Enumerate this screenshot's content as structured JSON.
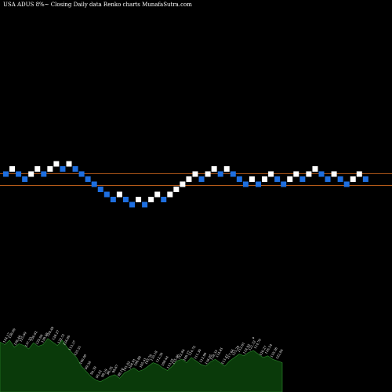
{
  "header": {
    "title": "USA ADUS 8%~  Closing Daily data  Renko  charts MunafaSutra.com"
  },
  "colors": {
    "background": "#000000",
    "up_brick": "#ffffff",
    "down_brick": "#1e6fe0",
    "level_line": "#d2691e",
    "volume_fill": "#0a3a0a",
    "volume_edge": "#2e8b2e",
    "label": "#ffffff"
  },
  "chart_data": {
    "type": "renko",
    "title": "USA ADUS 8%~ Closing Daily data Renko charts MunafaSutra.com",
    "brick_step": 1,
    "levels": [
      0,
      -2.3
    ],
    "bricks": [
      {
        "level": 0,
        "dir": "down"
      },
      {
        "level": 1,
        "dir": "up"
      },
      {
        "level": 0,
        "dir": "down"
      },
      {
        "level": -1,
        "dir": "down"
      },
      {
        "level": 0,
        "dir": "up"
      },
      {
        "level": 1,
        "dir": "up"
      },
      {
        "level": 0,
        "dir": "down"
      },
      {
        "level": 1,
        "dir": "up"
      },
      {
        "level": 2,
        "dir": "up"
      },
      {
        "level": 1,
        "dir": "down"
      },
      {
        "level": 2,
        "dir": "up"
      },
      {
        "level": 1,
        "dir": "down"
      },
      {
        "level": 0,
        "dir": "down"
      },
      {
        "level": -1,
        "dir": "down"
      },
      {
        "level": -2,
        "dir": "down"
      },
      {
        "level": -3,
        "dir": "down"
      },
      {
        "level": -4,
        "dir": "down"
      },
      {
        "level": -5,
        "dir": "down"
      },
      {
        "level": -4,
        "dir": "up"
      },
      {
        "level": -5,
        "dir": "down"
      },
      {
        "level": -6,
        "dir": "down"
      },
      {
        "level": -5,
        "dir": "up"
      },
      {
        "level": -6,
        "dir": "down"
      },
      {
        "level": -5,
        "dir": "up"
      },
      {
        "level": -4,
        "dir": "up"
      },
      {
        "level": -5,
        "dir": "down"
      },
      {
        "level": -4,
        "dir": "up"
      },
      {
        "level": -3,
        "dir": "up"
      },
      {
        "level": -2,
        "dir": "up"
      },
      {
        "level": -1,
        "dir": "up"
      },
      {
        "level": 0,
        "dir": "up"
      },
      {
        "level": -1,
        "dir": "down"
      },
      {
        "level": 0,
        "dir": "up"
      },
      {
        "level": 1,
        "dir": "up"
      },
      {
        "level": 0,
        "dir": "down"
      },
      {
        "level": 1,
        "dir": "up"
      },
      {
        "level": 0,
        "dir": "down"
      },
      {
        "level": -1,
        "dir": "down"
      },
      {
        "level": -2,
        "dir": "down"
      },
      {
        "level": -1,
        "dir": "up"
      },
      {
        "level": -2,
        "dir": "down"
      },
      {
        "level": -1,
        "dir": "up"
      },
      {
        "level": 0,
        "dir": "up"
      },
      {
        "level": -1,
        "dir": "down"
      },
      {
        "level": -2,
        "dir": "down"
      },
      {
        "level": -1,
        "dir": "up"
      },
      {
        "level": 0,
        "dir": "up"
      },
      {
        "level": -1,
        "dir": "down"
      },
      {
        "level": 0,
        "dir": "up"
      },
      {
        "level": 1,
        "dir": "up"
      },
      {
        "level": 0,
        "dir": "down"
      },
      {
        "level": -1,
        "dir": "down"
      },
      {
        "level": 0,
        "dir": "up"
      },
      {
        "level": -1,
        "dir": "down"
      },
      {
        "level": -2,
        "dir": "down"
      },
      {
        "level": -1,
        "dir": "up"
      },
      {
        "level": 0,
        "dir": "up"
      },
      {
        "level": -1,
        "dir": "down"
      }
    ],
    "volume": [
      58,
      55,
      60,
      52,
      56,
      54,
      50,
      57,
      53,
      55,
      62,
      58,
      54,
      60,
      52,
      46,
      40,
      30,
      24,
      18,
      14,
      12,
      15,
      18,
      20,
      16,
      22,
      25,
      28,
      24,
      26,
      30,
      34,
      32,
      28,
      25,
      30,
      36,
      38,
      34,
      40,
      36,
      32,
      30,
      35,
      38,
      34,
      30,
      36,
      40,
      44,
      42,
      46,
      48,
      44,
      40,
      42,
      38,
      36,
      34
    ],
    "volume_labels": [
      "124.17",
      "138.09",
      "126.46",
      "125.99",
      "137.23",
      "130.92",
      "125.00",
      "139.58",
      "129.48",
      "128.27",
      "132.51",
      "124.00",
      "113.37",
      "125.51",
      "100.00",
      "99.38",
      "94.39",
      "95.01",
      "98.19",
      "96.35",
      "98.67",
      "98.10",
      "101.02",
      "104.91",
      "106.88",
      "105.41",
      "103.76",
      "110.18",
      "112.30",
      "108.44",
      "113.25",
      "115.06",
      "112.84",
      "109.77",
      "114.72",
      "111.39",
      "112.90",
      "116.05",
      "118.33",
      "114.81",
      "113.47",
      "117.64",
      "115.29",
      "112.61",
      "118.92",
      "121.32",
      "114.70",
      "120.27",
      "116.54",
      "119.36",
      "122.84"
    ],
    "marker_label": "x"
  }
}
